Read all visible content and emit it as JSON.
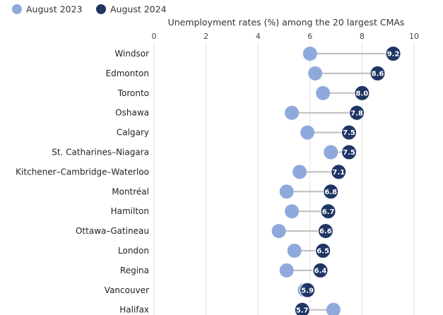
{
  "chart_data": {
    "type": "dumbbell",
    "title": "Unemployment rates (%) among the 20 largest CMAs",
    "xlim": [
      0,
      10
    ],
    "xticks": [
      0,
      2,
      4,
      6,
      8,
      10
    ],
    "grid": true,
    "legend_position": "top-left",
    "series": [
      {
        "name": "August 2023",
        "color": "#8fa9dc"
      },
      {
        "name": "August 2024",
        "color": "#1f3564"
      }
    ],
    "categories": [
      "Windsor",
      "Edmonton",
      "Toronto",
      "Oshawa",
      "Calgary",
      "St. Catharines–Niagara",
      "Kitchener–Cambridge–Waterloo",
      "Montréal",
      "Hamilton",
      "Ottawa–Gatineau",
      "London",
      "Regina",
      "Vancouver",
      "Halifax"
    ],
    "values_2023": [
      6.0,
      6.2,
      6.5,
      5.3,
      5.9,
      6.8,
      5.6,
      5.1,
      5.3,
      4.8,
      5.4,
      5.1,
      5.8,
      6.9
    ],
    "values_2024": [
      9.2,
      8.6,
      8.0,
      7.8,
      7.5,
      7.5,
      7.1,
      6.8,
      6.7,
      6.6,
      6.5,
      6.4,
      5.9,
      5.7
    ],
    "labels_2024": [
      "9.2",
      "8.6",
      "8.0",
      "7.8",
      "7.5",
      "7.5",
      "7.1",
      "6.8",
      "6.7",
      "6.6",
      "6.5",
      "6.4",
      "5.9",
      "5.7"
    ]
  }
}
